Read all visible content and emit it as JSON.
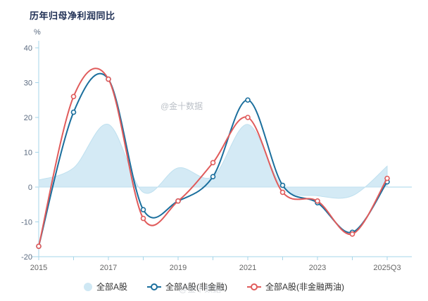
{
  "title": "历年归母净利润同比",
  "ylabel": "%",
  "watermark": "@金十数据",
  "colors": {
    "axis": "#a6d6ea",
    "tick_label": "#5b6b80",
    "x_label": "#666666",
    "title": "#1f2f54"
  },
  "chart_data": {
    "type": "line",
    "title": "历年归母净利润同比",
    "xlabel": "",
    "ylabel": "%",
    "ylim": [
      -20,
      40
    ],
    "yticks": [
      40,
      30,
      20,
      10,
      0,
      -10,
      -20
    ],
    "xticks": [
      "2015",
      "2017",
      "2019",
      "2021",
      "2023",
      "2025Q3"
    ],
    "x": [
      "2015",
      "2016",
      "2017",
      "2018",
      "2019",
      "2020",
      "2021",
      "2022",
      "2023",
      "2024",
      "2025Q3"
    ],
    "grid": false,
    "legend_position": "bottom",
    "series": [
      {
        "name": "全部A股",
        "type": "area",
        "color": "#cfe8f4",
        "line_color": "#bfe0ef",
        "values": [
          2,
          5.5,
          18,
          -1.5,
          5.5,
          3,
          18,
          0,
          -2.5,
          -2.5,
          6
        ]
      },
      {
        "name": "全部A股(非金融)",
        "type": "line",
        "color": "#1b6f9d",
        "values": [
          -17,
          21.5,
          31,
          -6.5,
          -4,
          3,
          25,
          0.5,
          -4.5,
          -13,
          1.5
        ]
      },
      {
        "name": "全部A股(非金融两油)",
        "type": "line",
        "color": "#e05b5b",
        "values": [
          -17,
          26,
          31,
          -9,
          -4,
          7,
          20,
          -1.5,
          -4,
          -13.5,
          2.5
        ]
      }
    ]
  }
}
